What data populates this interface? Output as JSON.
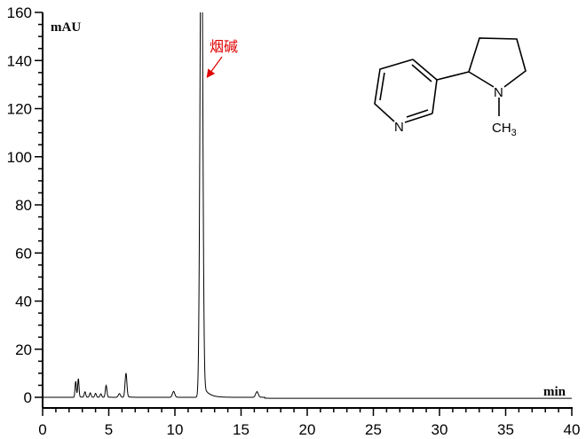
{
  "chart_data": {
    "type": "line",
    "title": "",
    "xlabel": "min",
    "ylabel": "mAU",
    "xlim": [
      0,
      40
    ],
    "ylim": [
      0,
      160
    ],
    "xticks": [
      0,
      5,
      10,
      15,
      20,
      25,
      30,
      35,
      40
    ],
    "yticks": [
      0,
      20,
      40,
      60,
      80,
      100,
      120,
      140,
      160
    ],
    "grid": false,
    "line_color": "#000000",
    "peaks": [
      {
        "rt": 2.5,
        "height": 6.5,
        "width": 0.05
      },
      {
        "rt": 2.7,
        "height": 7.5,
        "width": 0.05
      },
      {
        "rt": 3.2,
        "height": 2.2,
        "width": 0.06
      },
      {
        "rt": 3.6,
        "height": 1.8,
        "width": 0.06
      },
      {
        "rt": 4.0,
        "height": 1.6,
        "width": 0.06
      },
      {
        "rt": 4.4,
        "height": 1.4,
        "width": 0.06
      },
      {
        "rt": 4.8,
        "height": 4.8,
        "width": 0.06
      },
      {
        "rt": 5.8,
        "height": 1.5,
        "width": 0.08
      },
      {
        "rt": 6.3,
        "height": 9.8,
        "width": 0.07
      },
      {
        "rt": 9.9,
        "height": 2.4,
        "width": 0.09
      },
      {
        "rt": 12.0,
        "height": 220,
        "width": 0.1
      },
      {
        "rt": 16.2,
        "height": 2.3,
        "width": 0.1
      }
    ],
    "annotation": {
      "text": "烟碱",
      "color": "#e00000",
      "points_to_rt": 12.0
    }
  },
  "structure": {
    "name": "nicotine",
    "atom_n_pyridine": "N",
    "atom_n_pyrrolidine": "N",
    "methyl_label": "CH",
    "methyl_subscript": "3"
  }
}
